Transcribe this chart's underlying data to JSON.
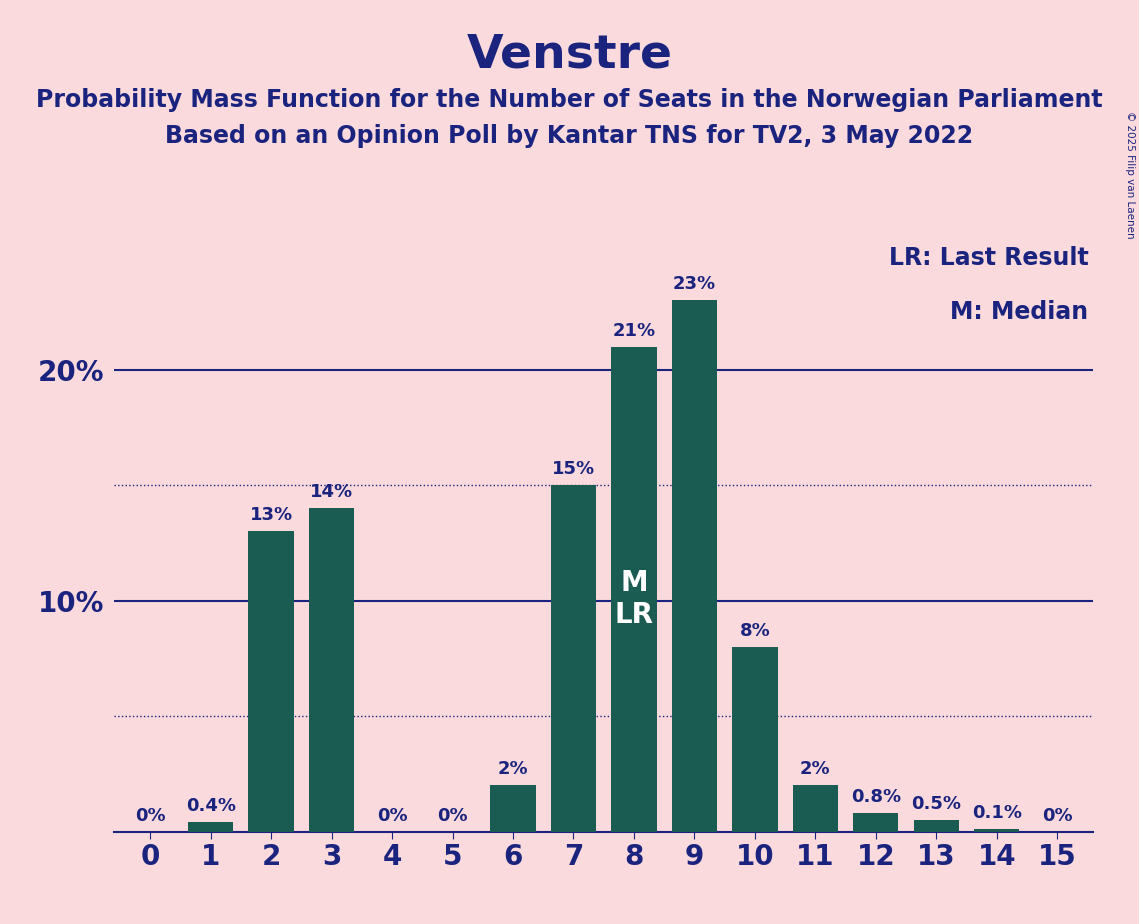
{
  "title": "Venstre",
  "subtitle1": "Probability Mass Function for the Number of Seats in the Norwegian Parliament",
  "subtitle2": "Based on an Opinion Poll by Kantar TNS for TV2, 3 May 2022",
  "copyright": "© 2025 Filip van Laenen",
  "seats": [
    0,
    1,
    2,
    3,
    4,
    5,
    6,
    7,
    8,
    9,
    10,
    11,
    12,
    13,
    14,
    15
  ],
  "probabilities": [
    0.0,
    0.4,
    13.0,
    14.0,
    0.0,
    0.0,
    2.0,
    15.0,
    21.0,
    23.0,
    8.0,
    2.0,
    0.8,
    0.5,
    0.1,
    0.0
  ],
  "labels": [
    "0%",
    "0.4%",
    "13%",
    "14%",
    "0%",
    "0%",
    "2%",
    "15%",
    "21%",
    "23%",
    "8%",
    "2%",
    "0.8%",
    "0.5%",
    "0.1%",
    "0%"
  ],
  "bar_color": "#1a5c52",
  "background_color": "#fadadd",
  "text_color": "#1a237e",
  "median_seat": 8,
  "median_label": "M",
  "last_result_label": "LR",
  "legend_lr": "LR: Last Result",
  "legend_m": "M: Median",
  "solid_gridlines": [
    10.0,
    20.0
  ],
  "dotted_gridlines": [
    5.0,
    15.0
  ],
  "ylim": [
    0,
    26
  ],
  "title_fontsize": 34,
  "subtitle_fontsize": 17,
  "bar_label_fontsize": 13,
  "axis_tick_fontsize": 20,
  "legend_fontsize": 17,
  "inner_label_fontsize": 20
}
